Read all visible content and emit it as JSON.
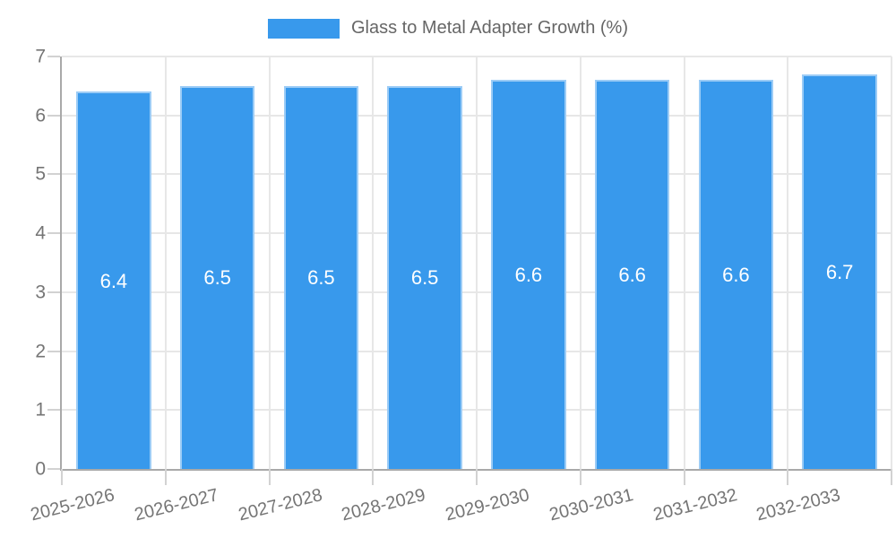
{
  "chart_data": {
    "type": "bar",
    "title": "",
    "legend_position": "top",
    "categories": [
      "2025-2026",
      "2026-2027",
      "2027-2028",
      "2028-2029",
      "2029-2030",
      "2030-2031",
      "2031-2032",
      "2032-2033"
    ],
    "series": [
      {
        "name": "Glass to Metal Adapter Growth (%)",
        "values": [
          6.4,
          6.5,
          6.5,
          6.5,
          6.6,
          6.6,
          6.6,
          6.7
        ]
      }
    ],
    "value_labels": [
      "6.4",
      "6.5",
      "6.5",
      "6.5",
      "6.6",
      "6.6",
      "6.6",
      "6.7"
    ],
    "xlabel": "",
    "ylabel": "",
    "ylim": [
      0,
      7
    ],
    "yticks": [
      0,
      1,
      2,
      3,
      4,
      5,
      6,
      7
    ],
    "grid": true,
    "colors": {
      "bar_fill": "#3899EC",
      "bar_border": "rgba(255,255,255,0.5)",
      "bar_value_text": "#ffffff",
      "legend_text": "#666666",
      "axis_line": "#a9a9a9",
      "gridline": "#e7e7e7",
      "tick_mark": "#d2d2d2",
      "tick_text": "#757575",
      "background": "#ffffff"
    }
  }
}
